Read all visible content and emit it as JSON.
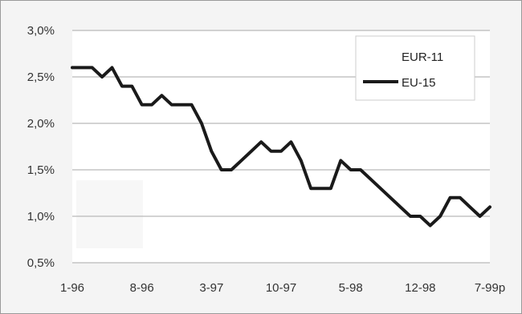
{
  "chart_data": {
    "type": "line",
    "title": "",
    "xlabel": "",
    "ylabel": "",
    "x_tick_labels": [
      "1-96",
      "8-96",
      "3-97",
      "10-97",
      "5-98",
      "12-98",
      "7-99p"
    ],
    "y_tick_labels": [
      "3,0%",
      "2,5%",
      "2,0%",
      "1,5%",
      "1,0%",
      "0,5%"
    ],
    "y_ticks": [
      3.0,
      2.5,
      2.0,
      1.5,
      1.0,
      0.5
    ],
    "ylim": [
      0.5,
      3.0
    ],
    "x_range_months": [
      "1-96",
      "7-99"
    ],
    "grid": "horizontal",
    "legend_position": "top-right",
    "series": [
      {
        "name": "EUR-11",
        "color": "#000000",
        "points": []
      },
      {
        "name": "EU-15",
        "color": "#1a1a1a",
        "points": [
          [
            "1-96",
            2.6
          ],
          [
            "2-96",
            2.6
          ],
          [
            "3-96",
            2.6
          ],
          [
            "4-96",
            2.5
          ],
          [
            "5-96",
            2.6
          ],
          [
            "6-96",
            2.4
          ],
          [
            "7-96",
            2.4
          ],
          [
            "8-96",
            2.2
          ],
          [
            "9-96",
            2.2
          ],
          [
            "10-96",
            2.3
          ],
          [
            "11-96",
            2.2
          ],
          [
            "12-96",
            2.2
          ],
          [
            "1-97",
            2.2
          ],
          [
            "2-97",
            2.0
          ],
          [
            "3-97",
            1.7
          ],
          [
            "4-97",
            1.5
          ],
          [
            "5-97",
            1.5
          ],
          [
            "6-97",
            1.6
          ],
          [
            "7-97",
            1.7
          ],
          [
            "8-97",
            1.8
          ],
          [
            "9-97",
            1.7
          ],
          [
            "10-97",
            1.7
          ],
          [
            "11-97",
            1.8
          ],
          [
            "12-97",
            1.6
          ],
          [
            "1-98",
            1.3
          ],
          [
            "2-98",
            1.3
          ],
          [
            "3-98",
            1.3
          ],
          [
            "4-98",
            1.6
          ],
          [
            "5-98",
            1.5
          ],
          [
            "6-98",
            1.5
          ],
          [
            "7-98",
            1.4
          ],
          [
            "8-98",
            1.3
          ],
          [
            "9-98",
            1.2
          ],
          [
            "10-98",
            1.1
          ],
          [
            "11-98",
            1.0
          ],
          [
            "12-98",
            1.0
          ],
          [
            "1-99",
            0.9
          ],
          [
            "2-99",
            1.0
          ],
          [
            "3-99",
            1.2
          ],
          [
            "4-99",
            1.2
          ],
          [
            "5-99",
            1.1
          ],
          [
            "6-99",
            1.0
          ],
          [
            "7-99",
            1.1
          ]
        ]
      }
    ]
  }
}
